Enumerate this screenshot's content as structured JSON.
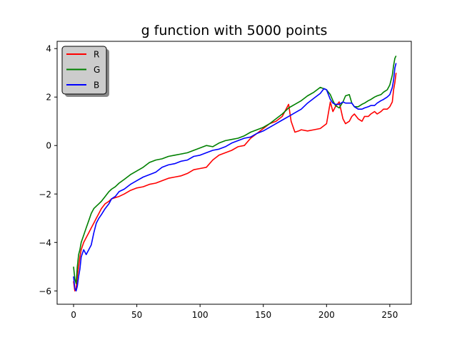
{
  "chart_data": {
    "type": "line",
    "title": "g function with 5000 points",
    "xlabel": "",
    "ylabel": "",
    "xlim": [
      -13,
      267
    ],
    "ylim": [
      -6.55,
      4.3
    ],
    "xticks": [
      0,
      50,
      100,
      150,
      200,
      250
    ],
    "yticks": [
      -6,
      -4,
      -2,
      0,
      2,
      4
    ],
    "xtick_labels": [
      "0",
      "50",
      "100",
      "150",
      "200",
      "250"
    ],
    "ytick_labels": [
      "−6",
      "−4",
      "−2",
      "0",
      "2",
      "4"
    ],
    "grid": false,
    "legend": {
      "placement": "top-left",
      "shadow": true
    },
    "series": [
      {
        "name": "R",
        "color": "#ff0000",
        "x": [
          0,
          1,
          2,
          3,
          4,
          5,
          6,
          8,
          10,
          12,
          14,
          16,
          18,
          20,
          22,
          25,
          28,
          30,
          33,
          36,
          40,
          45,
          50,
          55,
          60,
          65,
          70,
          75,
          80,
          85,
          90,
          95,
          100,
          105,
          110,
          115,
          120,
          125,
          130,
          135,
          140,
          145,
          150,
          155,
          160,
          165,
          168,
          170,
          172,
          175,
          178,
          180,
          185,
          190,
          195,
          200,
          203,
          205,
          207,
          210,
          213,
          215,
          218,
          220,
          222,
          225,
          228,
          230,
          233,
          235,
          238,
          240,
          243,
          245,
          248,
          250,
          252,
          253,
          254,
          255
        ],
        "values": [
          -5.6,
          -6.0,
          -5.9,
          -5.4,
          -5.0,
          -4.6,
          -4.3,
          -4.0,
          -3.8,
          -3.6,
          -3.4,
          -3.2,
          -3.0,
          -2.8,
          -2.6,
          -2.4,
          -2.3,
          -2.2,
          -2.15,
          -2.1,
          -2.0,
          -1.85,
          -1.75,
          -1.7,
          -1.6,
          -1.55,
          -1.45,
          -1.35,
          -1.3,
          -1.25,
          -1.15,
          -1.0,
          -0.95,
          -0.9,
          -0.6,
          -0.4,
          -0.3,
          -0.2,
          -0.05,
          0.0,
          0.3,
          0.5,
          0.7,
          0.9,
          1.0,
          1.2,
          1.5,
          1.7,
          1.0,
          0.55,
          0.6,
          0.65,
          0.6,
          0.65,
          0.7,
          0.9,
          1.8,
          1.4,
          1.6,
          1.8,
          1.1,
          0.9,
          1.0,
          1.2,
          1.3,
          1.1,
          1.0,
          1.2,
          1.2,
          1.3,
          1.4,
          1.3,
          1.4,
          1.5,
          1.5,
          1.6,
          1.8,
          2.3,
          2.6,
          3.0
        ]
      },
      {
        "name": "G",
        "color": "#008000",
        "x": [
          0,
          1,
          2,
          3,
          4,
          5,
          6,
          8,
          10,
          12,
          14,
          16,
          18,
          20,
          22,
          25,
          28,
          30,
          33,
          36,
          40,
          45,
          50,
          55,
          60,
          65,
          70,
          75,
          80,
          85,
          90,
          95,
          100,
          105,
          110,
          115,
          120,
          125,
          130,
          135,
          140,
          145,
          150,
          155,
          160,
          165,
          170,
          175,
          180,
          185,
          190,
          195,
          200,
          203,
          205,
          207,
          210,
          213,
          215,
          218,
          220,
          222,
          225,
          228,
          230,
          233,
          235,
          238,
          240,
          243,
          245,
          248,
          250,
          252,
          253,
          254,
          255
        ],
        "values": [
          -5.0,
          -5.5,
          -5.7,
          -5.0,
          -4.5,
          -4.3,
          -4.0,
          -3.7,
          -3.4,
          -3.1,
          -2.8,
          -2.6,
          -2.5,
          -2.4,
          -2.3,
          -2.1,
          -1.9,
          -1.8,
          -1.7,
          -1.55,
          -1.4,
          -1.2,
          -1.05,
          -0.9,
          -0.7,
          -0.6,
          -0.55,
          -0.45,
          -0.4,
          -0.35,
          -0.3,
          -0.2,
          -0.1,
          0.0,
          -0.05,
          0.1,
          0.2,
          0.25,
          0.3,
          0.4,
          0.55,
          0.65,
          0.75,
          0.9,
          1.1,
          1.3,
          1.55,
          1.7,
          1.85,
          2.05,
          2.2,
          2.4,
          2.3,
          2.1,
          1.85,
          1.65,
          1.55,
          1.8,
          2.05,
          2.1,
          1.75,
          1.6,
          1.6,
          1.7,
          1.75,
          1.85,
          1.9,
          2.0,
          2.05,
          2.1,
          2.2,
          2.3,
          2.5,
          2.9,
          3.3,
          3.6,
          3.7
        ]
      },
      {
        "name": "B",
        "color": "#0000ff",
        "x": [
          0,
          1,
          2,
          3,
          4,
          5,
          6,
          8,
          10,
          12,
          14,
          16,
          18,
          20,
          22,
          25,
          28,
          30,
          33,
          36,
          40,
          45,
          50,
          55,
          60,
          65,
          70,
          75,
          80,
          85,
          90,
          95,
          100,
          105,
          110,
          115,
          120,
          125,
          130,
          135,
          140,
          145,
          150,
          155,
          160,
          165,
          170,
          175,
          180,
          185,
          190,
          195,
          198,
          200,
          203,
          205,
          207,
          210,
          213,
          215,
          218,
          220,
          222,
          225,
          228,
          230,
          233,
          235,
          238,
          240,
          243,
          245,
          248,
          250,
          252,
          253,
          254,
          255
        ],
        "values": [
          -5.4,
          -5.9,
          -6.0,
          -5.8,
          -5.4,
          -5.1,
          -4.6,
          -4.3,
          -4.5,
          -4.3,
          -4.1,
          -3.6,
          -3.2,
          -3.0,
          -2.85,
          -2.6,
          -2.4,
          -2.2,
          -2.1,
          -1.9,
          -1.8,
          -1.6,
          -1.45,
          -1.3,
          -1.2,
          -1.1,
          -0.9,
          -0.8,
          -0.75,
          -0.65,
          -0.6,
          -0.45,
          -0.4,
          -0.3,
          -0.2,
          -0.15,
          -0.05,
          0.1,
          0.2,
          0.3,
          0.35,
          0.5,
          0.6,
          0.75,
          0.9,
          1.05,
          1.2,
          1.35,
          1.5,
          1.75,
          1.95,
          2.15,
          2.35,
          2.3,
          1.9,
          1.75,
          1.7,
          1.7,
          1.8,
          1.75,
          1.75,
          1.75,
          1.6,
          1.5,
          1.5,
          1.55,
          1.6,
          1.65,
          1.65,
          1.75,
          1.85,
          1.9,
          2.0,
          2.1,
          2.4,
          2.7,
          3.2,
          3.4
        ]
      }
    ]
  }
}
